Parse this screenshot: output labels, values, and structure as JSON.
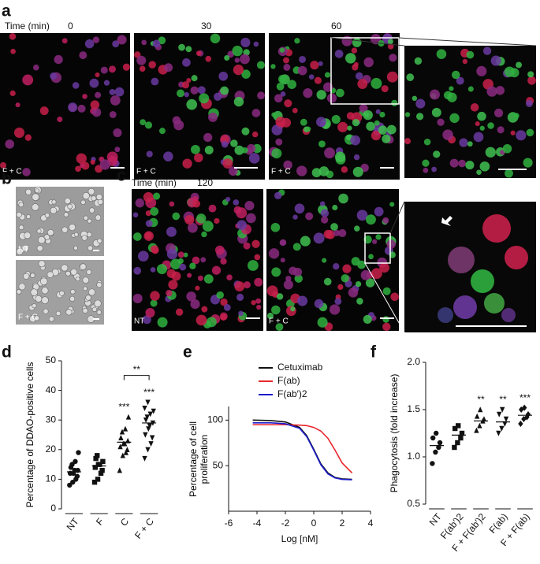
{
  "panels": {
    "a": {
      "label": "a",
      "time_label": "Time (min)",
      "times": [
        "0",
        "30",
        "60"
      ],
      "image_labels": [
        "F + C",
        "F + C",
        "F + C"
      ]
    },
    "b": {
      "label": "b",
      "image_labels": [
        "NT",
        "F + C"
      ]
    },
    "c": {
      "label": "c",
      "time_label": "Time (min)",
      "times": [
        "120"
      ],
      "image_labels": [
        "NT",
        "F + C"
      ]
    }
  },
  "chart_data": [
    {
      "type": "dot",
      "panel": "d",
      "ylabel": "Percentage of DDAO-positive cells",
      "categories": [
        "NT",
        "F",
        "C",
        "F + C"
      ],
      "markers": [
        "circle",
        "square",
        "triangle",
        "triangle-down"
      ],
      "values": [
        [
          8,
          9,
          10,
          11,
          12,
          12,
          13,
          13,
          14,
          15,
          16,
          19
        ],
        [
          9,
          10,
          12,
          13,
          14,
          15,
          15,
          16,
          17,
          18
        ],
        [
          13,
          18,
          19,
          20,
          21,
          22,
          22,
          23,
          24,
          26,
          27,
          31
        ],
        [
          17,
          20,
          22,
          24,
          25,
          27,
          28,
          29,
          30,
          31,
          32,
          33,
          34,
          36
        ]
      ],
      "means": [
        12.5,
        14.5,
        22.5,
        29
      ],
      "ylim": [
        0,
        50
      ],
      "yticks": [
        0,
        10,
        20,
        30,
        40,
        50
      ],
      "annotations": [
        {
          "text": "***",
          "categories": [
            "C"
          ]
        },
        {
          "text": "***",
          "categories": [
            "F + C"
          ]
        },
        {
          "text": "**",
          "categories": [
            "C",
            "F + C"
          ]
        }
      ]
    },
    {
      "type": "line",
      "panel": "e",
      "xlabel": "Log [nM]",
      "ylabel": "Percentage of cell proliferation",
      "x": [
        -4.3,
        -3,
        -2,
        -1,
        -0.5,
        0,
        0.5,
        1,
        1.5,
        2,
        2.7
      ],
      "series": [
        {
          "name": "Cetuximab",
          "color": "#111111",
          "values": [
            100,
            99.5,
            98,
            92,
            83,
            68,
            52,
            42,
            37,
            35.5,
            35
          ]
        },
        {
          "name": "F(ab)",
          "color": "#e8262c",
          "values": [
            95,
            95,
            95,
            94.5,
            94,
            92,
            88,
            80,
            67,
            53,
            42
          ]
        },
        {
          "name": "F(ab′)2",
          "color": "#1c1ccc",
          "values": [
            97,
            97,
            96,
            91,
            82,
            67,
            51,
            41,
            36.5,
            35,
            34.5
          ]
        }
      ],
      "xlim": [
        -6,
        4
      ],
      "xticks": [
        -6,
        -4,
        -2,
        0,
        2,
        4
      ],
      "ylim": [
        0,
        115
      ],
      "yticks": [
        50,
        100
      ],
      "legend": "top"
    },
    {
      "type": "dot",
      "panel": "f",
      "ylabel": "Phagocytosis (fold increase)",
      "categories": [
        "NT",
        "F(ab′)2",
        "F + F(ab′)2",
        "F(ab)",
        "F + F(ab)"
      ],
      "markers": [
        "circle",
        "square",
        "triangle",
        "triangle-down",
        "diamond"
      ],
      "values": [
        [
          0.93,
          1.05,
          1.1,
          1.15,
          1.2,
          1.25
        ],
        [
          1.1,
          1.15,
          1.2,
          1.25,
          1.3,
          1.33
        ],
        [
          1.28,
          1.33,
          1.38,
          1.4,
          1.43,
          1.5
        ],
        [
          1.25,
          1.3,
          1.35,
          1.4,
          1.45,
          1.5
        ],
        [
          1.35,
          1.4,
          1.42,
          1.45,
          1.5,
          1.52
        ]
      ],
      "means": [
        1.12,
        1.23,
        1.38,
        1.37,
        1.44
      ],
      "ylim": [
        0.5,
        2.0
      ],
      "yticks": [
        {
          "value": 0.5,
          "label": "0.5"
        },
        {
          "value": 1.0,
          "label": "1.0"
        },
        {
          "value": 1.5,
          "label": "1.5"
        },
        {
          "value": 2.0,
          "label": "2.0"
        }
      ],
      "annotations": [
        {
          "text": "**",
          "categories": [
            "F + F(ab′)2"
          ]
        },
        {
          "text": "**",
          "categories": [
            "F(ab)"
          ]
        },
        {
          "text": "***",
          "categories": [
            "F + F(ab)"
          ]
        }
      ]
    }
  ]
}
